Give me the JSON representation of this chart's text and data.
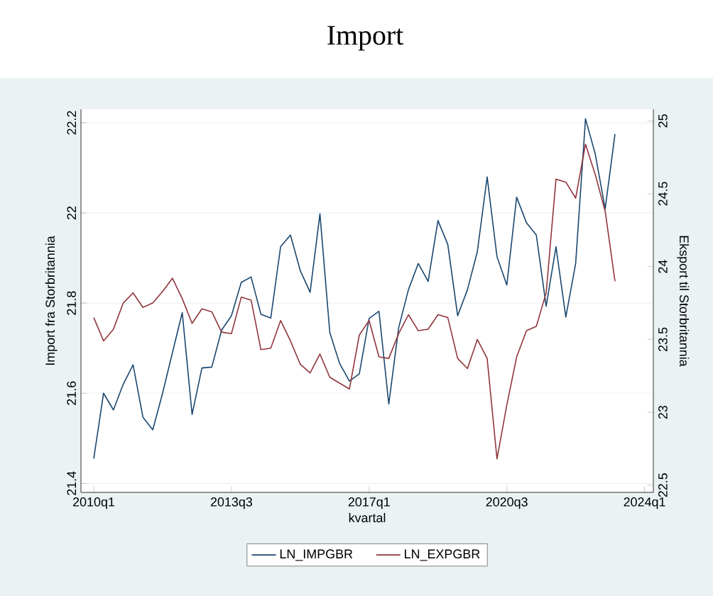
{
  "chart_data": {
    "type": "line",
    "title": "Import",
    "xlabel": "kvartal",
    "ylabel": "Import fra Storbritannia",
    "y2label": "Eksport til Storbritannia",
    "categories": [
      "2010q1",
      null,
      null,
      null,
      null,
      null,
      null,
      null,
      null,
      null,
      null,
      null,
      null,
      null,
      "2013q3",
      null,
      null,
      null,
      null,
      null,
      null,
      null,
      null,
      null,
      null,
      null,
      null,
      null,
      "2017q1",
      null,
      null,
      null,
      null,
      null,
      null,
      null,
      null,
      null,
      null,
      null,
      null,
      null,
      "2020q3",
      null,
      null,
      null,
      null,
      null,
      null,
      null,
      null,
      null,
      null,
      null,
      null,
      null,
      "2024q1"
    ],
    "series": [
      {
        "name": "LN_IMPGBR",
        "color": "#1a476f",
        "values": [
          21.455,
          21.6,
          21.563,
          21.62,
          21.663,
          21.547,
          21.519,
          21.6,
          21.69,
          21.779,
          21.553,
          21.656,
          21.658,
          21.74,
          21.772,
          21.846,
          21.858,
          21.775,
          21.767,
          21.925,
          21.951,
          21.872,
          21.824,
          21.998,
          21.735,
          21.666,
          21.627,
          21.643,
          21.766,
          21.782,
          21.576,
          21.745,
          21.83,
          21.888,
          21.848,
          21.983,
          21.93,
          21.772,
          21.83,
          21.914,
          22.08,
          21.903,
          21.84,
          22.035,
          21.978,
          21.951,
          21.793,
          21.925,
          21.769,
          21.888,
          22.209,
          22.13,
          22.009,
          22.175,
          null,
          null,
          null
        ]
      },
      {
        "name": "LN_EXPGBR",
        "color": "#90353b",
        "axis": "y2",
        "values": [
          23.65,
          23.49,
          23.57,
          23.75,
          23.82,
          23.72,
          23.75,
          23.83,
          23.92,
          23.78,
          23.61,
          23.71,
          23.69,
          23.55,
          23.54,
          23.79,
          23.77,
          23.43,
          23.44,
          23.63,
          23.49,
          23.33,
          23.27,
          23.4,
          23.24,
          23.2,
          23.16,
          23.53,
          23.63,
          23.38,
          23.37,
          23.54,
          23.67,
          23.56,
          23.57,
          23.67,
          23.65,
          23.37,
          23.3,
          23.5,
          23.37,
          22.68,
          23.05,
          23.38,
          23.56,
          23.59,
          23.82,
          24.6,
          24.58,
          24.47,
          24.84,
          24.63,
          24.38,
          23.9,
          null,
          null,
          null
        ]
      }
    ],
    "ylim": [
      21.38,
      22.23
    ],
    "yticks": [
      21.4,
      21.6,
      21.8,
      22,
      22.2
    ],
    "y2lim": [
      22.45,
      25.08
    ],
    "y2ticks": [
      22.5,
      23,
      23.5,
      24,
      24.5,
      25
    ],
    "grid": "y",
    "legend": "bottom"
  }
}
